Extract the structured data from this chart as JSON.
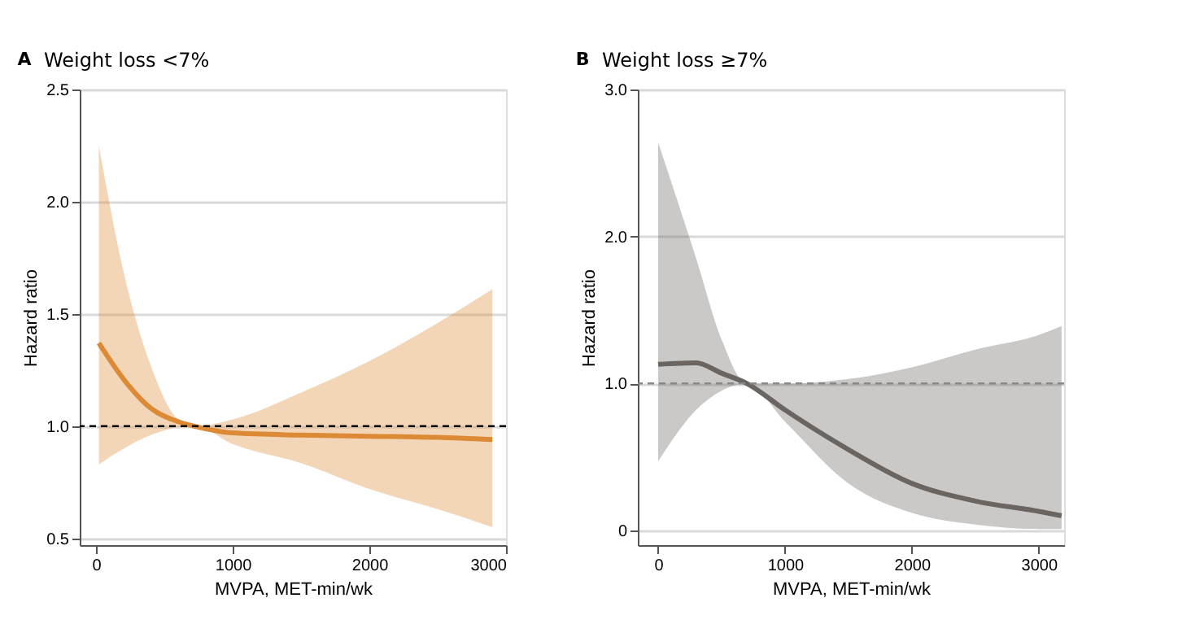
{
  "chart_data": [
    {
      "type": "line",
      "title": "Weight loss <7%",
      "annotations": [
        "A"
      ],
      "xlabel": "MVPA, MET-min/wk",
      "ylabel": "Hazard ratio",
      "x": [
        20,
        200,
        400,
        600,
        720,
        1000,
        1500,
        2000,
        2500,
        2900
      ],
      "series": [
        {
          "color": "#dc8a35",
          "values": [
            1.37,
            1.21,
            1.08,
            1.02,
            1.0,
            0.97,
            0.96,
            0.955,
            0.95,
            0.94
          ],
          "lower": [
            0.83,
            0.9,
            0.96,
            0.995,
            1.0,
            0.92,
            0.835,
            0.72,
            0.63,
            0.55
          ],
          "upper": [
            2.25,
            1.69,
            1.27,
            1.03,
            1.0,
            1.03,
            1.15,
            1.29,
            1.46,
            1.61
          ]
        }
      ],
      "xlim": [
        -120,
        3000
      ],
      "xticks": [
        0,
        1000,
        2000,
        3000
      ],
      "ylim": [
        0.47,
        2.5
      ],
      "yticks": [
        0.5,
        {
          "value": 1,
          "label": "1.0"
        },
        1.5,
        {
          "value": 2,
          "label": "2.0"
        },
        2.5
      ],
      "ref_lines": [
        {
          "axis": "y",
          "value": 1,
          "color": "#000000",
          "line_style": "dashed"
        }
      ],
      "grid": "y"
    },
    {
      "type": "line",
      "title": "Weight loss ≥7%",
      "annotations": [
        "B"
      ],
      "xlabel": "MVPA, MET-min/wk",
      "ylabel": "Hazard ratio",
      "x": [
        0,
        300,
        500,
        700,
        1000,
        1500,
        2000,
        2500,
        3000,
        3180
      ],
      "series": [
        {
          "color": "#6b6562",
          "values": [
            1.13,
            1.14,
            1.07,
            1.0,
            0.82,
            0.55,
            0.32,
            0.2,
            0.13,
            0.1
          ],
          "lower": [
            0.47,
            0.82,
            0.95,
            1.0,
            0.74,
            0.32,
            0.12,
            0.04,
            0.01,
            0.01
          ],
          "upper": [
            2.64,
            1.85,
            1.3,
            1.0,
            1.0,
            1.03,
            1.11,
            1.23,
            1.33,
            1.39
          ]
        }
      ],
      "xlim": [
        -160,
        3200
      ],
      "xticks": [
        0,
        1000,
        2000,
        3000
      ],
      "ylim": [
        -0.1,
        3.0
      ],
      "yticks": [
        {
          "value": 0,
          "label": "0"
        },
        {
          "value": 1,
          "label": "1.0"
        },
        {
          "value": 2,
          "label": "2.0"
        },
        {
          "value": 3,
          "label": "3.0"
        }
      ],
      "ref_lines": [
        {
          "axis": "y",
          "value": 1,
          "color": "#888888",
          "line_style": "dashed"
        }
      ],
      "grid": "y"
    }
  ]
}
